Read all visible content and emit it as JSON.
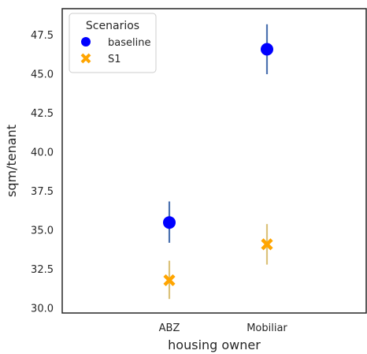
{
  "chart_data": {
    "type": "scatter",
    "xlabel": "housing owner",
    "ylabel": "sqm/tenant",
    "categories": [
      "ABZ",
      "Mobiliar"
    ],
    "ylim": [
      29.7,
      49.2
    ],
    "yticks": [
      "30.0",
      "32.5",
      "35.0",
      "37.5",
      "40.0",
      "42.5",
      "45.0",
      "47.5"
    ],
    "grid": false,
    "legend": {
      "title": "Scenarios",
      "placement": "top-left"
    },
    "series": [
      {
        "name": "baseline",
        "marker": "circle",
        "color": "#0000ff",
        "error_color": "#4c72b0",
        "values": [
          35.5,
          46.6
        ],
        "error_low": [
          34.2,
          45.0
        ],
        "error_high": [
          36.85,
          48.2
        ]
      },
      {
        "name": "S1",
        "marker": "x",
        "color": "#ffa500",
        "error_color": "#dbc27a",
        "values": [
          31.8,
          34.1
        ],
        "error_low": [
          30.6,
          32.8
        ],
        "error_high": [
          33.05,
          35.4
        ]
      }
    ]
  }
}
